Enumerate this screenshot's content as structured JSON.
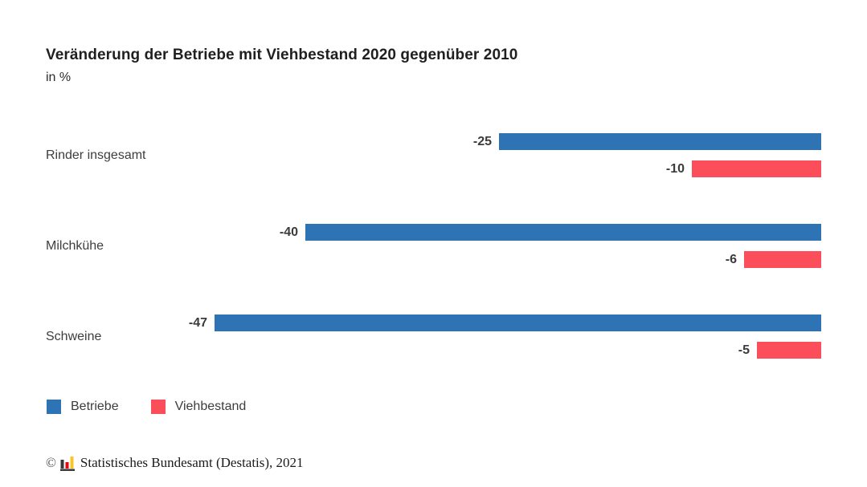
{
  "title": "Veränderung der Betriebe mit Viehbestand 2020 gegenüber 2010",
  "subtitle": "in %",
  "chart_data": {
    "type": "bar",
    "orientation": "horizontal",
    "anchor": "right",
    "categories": [
      "Rinder insgesamt",
      "Milchkühe",
      "Schweine"
    ],
    "series": [
      {
        "name": "Betriebe",
        "color": "#2e74b5",
        "values": [
          -25,
          -40,
          -47
        ]
      },
      {
        "name": "Viehbestand",
        "color": "#fb4d5a",
        "values": [
          -10,
          -6,
          -5
        ]
      }
    ],
    "xlim": [
      -50,
      0
    ],
    "grid": false,
    "value_labels_shown": true,
    "legend_position": "bottom-left",
    "title": "Veränderung der Betriebe mit Viehbestand 2020 gegenüber 2010",
    "ylabel": "",
    "xlabel": "in %"
  },
  "legend": {
    "items": [
      {
        "label": "Betriebe",
        "color": "#2e74b5"
      },
      {
        "label": "Viehbestand",
        "color": "#fb4d5a"
      }
    ]
  },
  "footer": {
    "copyright": "©",
    "source": "Statistisches Bundesamt (Destatis), 2021",
    "logo": "destatis-bar-chart-logo",
    "logo_colors": {
      "bar1": "#3a3a39",
      "bar2": "#e30613",
      "bar3": "#f8c623",
      "base": "#3a3a39"
    }
  }
}
